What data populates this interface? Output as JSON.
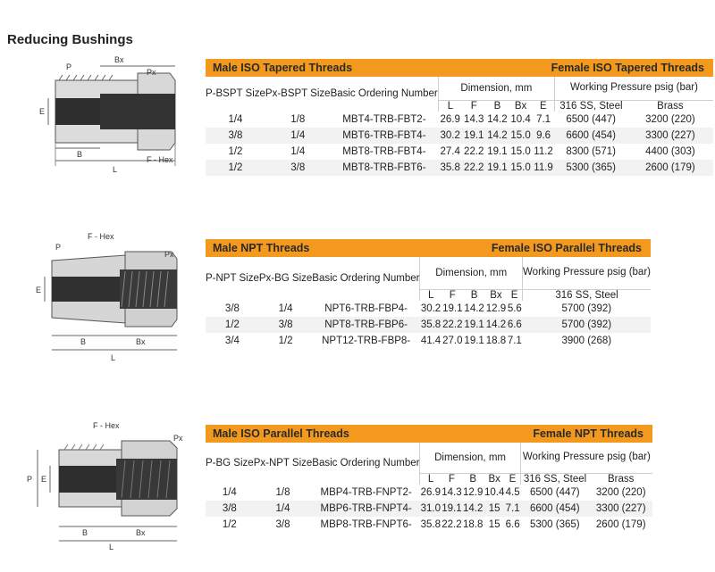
{
  "page_title": "Reducing Bushings",
  "common_headers": {
    "basic_ordering_number": "Basic Ordering Number",
    "dimension_mm": "Dimension, mm",
    "working_pressure": "Working Pressure psig (bar)",
    "ss_steel": "316 SS, Steel",
    "brass": "Brass",
    "L": "L",
    "F": "F",
    "B": "B",
    "Bx": "Bx",
    "E": "E"
  },
  "diagram_labels": {
    "P": "P",
    "Bx": "Bx",
    "Px": "Px",
    "E": "E",
    "B": "B",
    "L": "L",
    "F_Hex": "F - Hex"
  },
  "table1": {
    "male_title": "Male ISO Tapered Threads",
    "female_title": "Female ISO Tapered Threads",
    "col1": "P-BSPT Size",
    "col2": "Px-BSPT Size",
    "rows": [
      [
        "1/4",
        "1/8",
        "MBT4-TRB-FBT2-",
        "26.9",
        "14.3",
        "14.2",
        "10.4",
        "7.1",
        "6500 (447)",
        "3200 (220)"
      ],
      [
        "3/8",
        "1/4",
        "MBT6-TRB-FBT4-",
        "30.2",
        "19.1",
        "14.2",
        "15.0",
        "9.6",
        "6600 (454)",
        "3300 (227)"
      ],
      [
        "1/2",
        "1/4",
        "MBT8-TRB-FBT4-",
        "27.4",
        "22.2",
        "19.1",
        "15.0",
        "11.2",
        "8300 (571)",
        "4400 (303)"
      ],
      [
        "1/2",
        "3/8",
        "MBT8-TRB-FBT6-",
        "35.8",
        "22.2",
        "19.1",
        "15.0",
        "11.9",
        "5300 (365)",
        "2600 (179)"
      ]
    ]
  },
  "table2": {
    "male_title": "Male NPT Threads",
    "female_title": "Female ISO Parallel Threads",
    "col1": "P-NPT Size",
    "col2": "Px-BG Size",
    "rows": [
      [
        "3/8",
        "1/4",
        "NPT6-TRB-FBP4-",
        "30.2",
        "19.1",
        "14.2",
        "12.9",
        "5.6",
        "5700 (392)"
      ],
      [
        "1/2",
        "3/8",
        "NPT8-TRB-FBP6-",
        "35.8",
        "22.2",
        "19.1",
        "14.2",
        "6.6",
        "5700 (392)"
      ],
      [
        "3/4",
        "1/2",
        "NPT12-TRB-FBP8-",
        "41.4",
        "27.0",
        "19.1",
        "18.8",
        "7.1",
        "3900 (268)"
      ]
    ]
  },
  "table3": {
    "male_title": "Male ISO Parallel Threads",
    "female_title": "Female NPT Threads",
    "col1": "P-BG Size",
    "col2": "Px-NPT Size",
    "rows": [
      [
        "1/4",
        "1/8",
        "MBP4-TRB-FNPT2-",
        "26.9",
        "14.3",
        "12.9",
        "10.4",
        "4.5",
        "6500 (447)",
        "3200 (220)"
      ],
      [
        "3/8",
        "1/4",
        "MBP6-TRB-FNPT4-",
        "31.0",
        "19.1",
        "14.2",
        "15",
        "7.1",
        "6600 (454)",
        "3300 (227)"
      ],
      [
        "1/2",
        "3/8",
        "MBP8-TRB-FNPT6-",
        "35.8",
        "22.2",
        "18.8",
        "15",
        "6.6",
        "5300 (365)",
        "2600 (179)"
      ]
    ]
  },
  "colors": {
    "header_orange": "#f39a1e",
    "stripe": "#f2f2f2"
  }
}
